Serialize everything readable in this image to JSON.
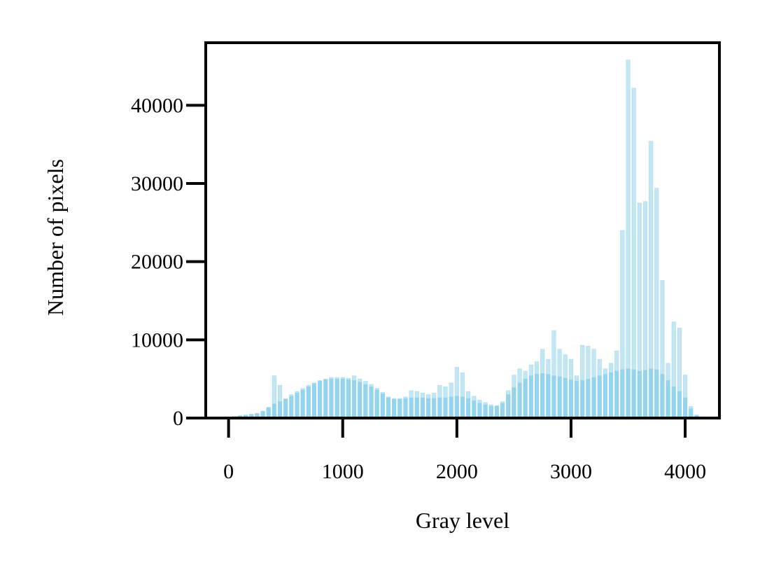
{
  "chart_data": {
    "type": "bar",
    "title": "",
    "xlabel": "Gray level",
    "ylabel": "Number of pixels",
    "xlim": [
      -200,
      4300
    ],
    "ylim": [
      0,
      48000
    ],
    "x_ticks": [
      0,
      1000,
      2000,
      3000,
      4000
    ],
    "y_ticks": [
      0,
      10000,
      20000,
      30000,
      40000
    ],
    "x_tick_labels": [
      "0",
      "1000",
      "2000",
      "3000",
      "4000"
    ],
    "y_tick_labels": [
      "0",
      "10000",
      "20000",
      "30000",
      "40000"
    ],
    "grid": false,
    "bar_color": "#87ceeb",
    "series": [
      {
        "bin_width": 34,
        "x": [
          50,
          100,
          150,
          200,
          250,
          300,
          350,
          400,
          450,
          500,
          550,
          600,
          650,
          700,
          750,
          800,
          850,
          900,
          950,
          1000,
          1050,
          1100,
          1150,
          1200,
          1250,
          1300,
          1350,
          1400,
          1450,
          1500,
          1550,
          1600,
          1650,
          1700,
          1750,
          1800,
          1850,
          1900,
          1950,
          2000,
          2050,
          2100,
          2150,
          2200,
          2250,
          2300,
          2350,
          2400,
          2450,
          2500,
          2550,
          2600,
          2650,
          2700,
          2750,
          2800,
          2850,
          2900,
          2950,
          3000,
          3050,
          3100,
          3150,
          3200,
          3250,
          3300,
          3350,
          3400,
          3450,
          3500,
          3550,
          3600,
          3650,
          3700,
          3750,
          3800,
          3850,
          3900,
          3950,
          4000,
          4050,
          4100
        ],
        "values": [
          200,
          300,
          400,
          500,
          600,
          900,
          1400,
          5400,
          4200,
          2500,
          3000,
          3400,
          3800,
          4200,
          4500,
          4800,
          5000,
          5200,
          5200,
          5200,
          5100,
          5400,
          5000,
          4700,
          4300,
          3800,
          3300,
          2700,
          2500,
          2500,
          2700,
          3500,
          3400,
          3200,
          3000,
          3200,
          4200,
          4000,
          4500,
          6500,
          5800,
          3400,
          2800,
          2300,
          2000,
          1700,
          1600,
          2100,
          3500,
          5500,
          6300,
          6000,
          6800,
          7200,
          8800,
          7500,
          11200,
          8800,
          8100,
          7500,
          5400,
          9300,
          9200,
          8800,
          7500,
          6300,
          7000,
          8600,
          24000,
          45800,
          42200,
          27500,
          27700,
          35400,
          29400,
          17600,
          7000,
          12300,
          11500,
          5500,
          1500,
          400
        ]
      },
      {
        "bin_width": 34,
        "x": [
          50,
          100,
          150,
          200,
          250,
          300,
          350,
          400,
          450,
          500,
          550,
          600,
          650,
          700,
          750,
          800,
          850,
          900,
          950,
          1000,
          1050,
          1100,
          1150,
          1200,
          1250,
          1300,
          1350,
          1400,
          1450,
          1500,
          1550,
          1600,
          1650,
          1700,
          1750,
          1800,
          1850,
          1900,
          1950,
          2000,
          2050,
          2100,
          2150,
          2200,
          2250,
          2300,
          2350,
          2400,
          2450,
          2500,
          2550,
          2600,
          2650,
          2700,
          2750,
          2800,
          2850,
          2900,
          2950,
          3000,
          3050,
          3100,
          3150,
          3200,
          3250,
          3300,
          3350,
          3400,
          3450,
          3500,
          3550,
          3600,
          3650,
          3700,
          3750,
          3800,
          3850,
          3900,
          3950,
          4000,
          4050,
          4100
        ],
        "values": [
          200,
          300,
          350,
          450,
          550,
          800,
          1300,
          1800,
          2100,
          2400,
          2800,
          3200,
          3600,
          4000,
          4400,
          4700,
          4900,
          5000,
          5000,
          5000,
          4900,
          4800,
          4600,
          4300,
          4000,
          3600,
          3100,
          2600,
          2400,
          2400,
          2500,
          2600,
          2600,
          2600,
          2500,
          2500,
          2600,
          2600,
          2700,
          2800,
          2700,
          2500,
          2200,
          1900,
          1700,
          1500,
          1500,
          1900,
          3000,
          3900,
          4500,
          5000,
          5400,
          5600,
          5700,
          5600,
          5400,
          5300,
          5100,
          4900,
          4700,
          4800,
          5000,
          5200,
          5400,
          5600,
          5800,
          6000,
          6200,
          6300,
          6200,
          6000,
          6100,
          6300,
          6200,
          5600,
          4800,
          4000,
          3400,
          2600,
          1200,
          300
        ]
      }
    ]
  }
}
